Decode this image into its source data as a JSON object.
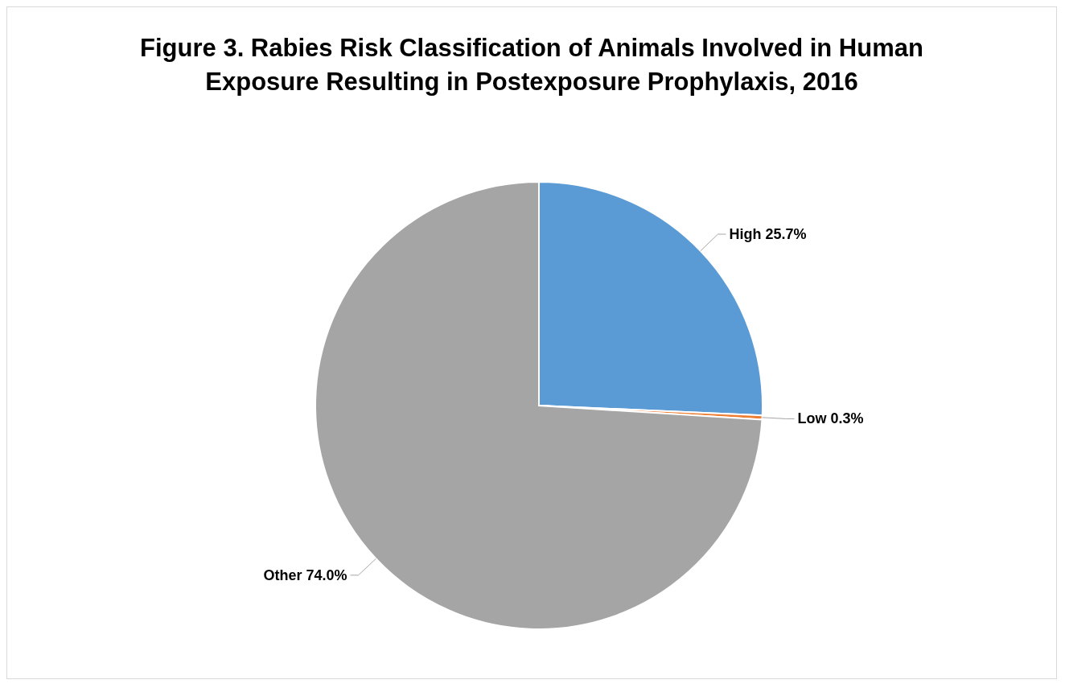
{
  "chart_data": {
    "type": "pie",
    "title": "Figure 3. Rabies Risk Classification of Animals Involved in Human Exposure Resulting in Postexposure Prophylaxis, 2016",
    "categories": [
      "High",
      "Low",
      "Other"
    ],
    "values": [
      25.7,
      0.3,
      74.0
    ],
    "value_labels": [
      "25.7%",
      "0.3%",
      "74.0%"
    ],
    "colors": [
      "#5b9bd5",
      "#ed7d31",
      "#a5a5a5"
    ],
    "legend": false
  }
}
